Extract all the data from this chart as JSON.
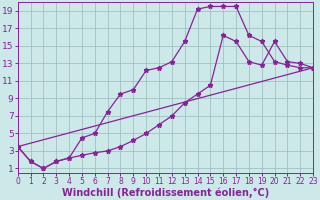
{
  "xlabel": "Windchill (Refroidissement éolien,°C)",
  "background_color": "#cce8e8",
  "line_color": "#882299",
  "grid_color": "#99bbbb",
  "xlim": [
    0,
    23
  ],
  "ylim": [
    0.5,
    20
  ],
  "xticks": [
    0,
    1,
    2,
    3,
    4,
    5,
    6,
    7,
    8,
    9,
    10,
    11,
    12,
    13,
    14,
    15,
    16,
    17,
    18,
    19,
    20,
    21,
    22,
    23
  ],
  "yticks": [
    1,
    3,
    5,
    7,
    9,
    11,
    13,
    15,
    17,
    19
  ],
  "curve1_x": [
    0,
    1,
    2,
    3,
    4,
    5,
    6,
    7,
    8,
    9,
    10,
    11,
    12,
    13,
    14,
    15,
    16,
    17,
    18,
    19,
    20,
    21,
    22,
    23
  ],
  "curve1_y": [
    3.5,
    1.8,
    1.0,
    1.8,
    2.2,
    4.5,
    5.0,
    7.5,
    9.5,
    10.0,
    12.2,
    12.5,
    13.2,
    15.5,
    19.2,
    19.5,
    19.5,
    19.5,
    16.2,
    15.5,
    13.2,
    12.8,
    12.5,
    12.5
  ],
  "curve2_x": [
    0,
    1,
    2,
    3,
    4,
    5,
    6,
    7,
    8,
    9,
    10,
    11,
    12,
    13,
    14,
    15,
    16,
    17,
    18,
    19,
    20,
    21,
    22,
    23
  ],
  "curve2_y": [
    3.5,
    1.8,
    1.0,
    1.8,
    2.2,
    2.5,
    2.8,
    3.0,
    3.5,
    4.2,
    5.0,
    6.0,
    7.0,
    8.5,
    9.5,
    10.5,
    16.2,
    15.5,
    13.2,
    12.8,
    15.5,
    13.2,
    13.0,
    12.5
  ],
  "line3_x": [
    0,
    23
  ],
  "line3_y": [
    3.5,
    12.5
  ],
  "tick_fontsize": 6.5,
  "xlabel_fontsize": 7.0
}
